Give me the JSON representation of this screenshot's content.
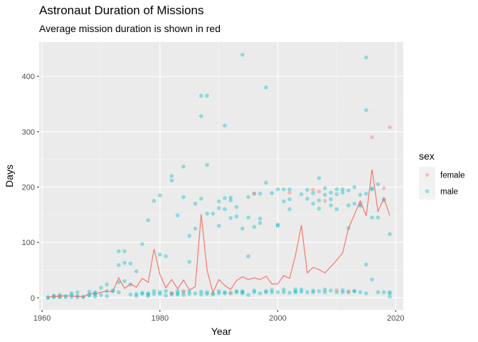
{
  "chart_data": {
    "type": "scatter",
    "title": "Astronaut Duration of Missions",
    "subtitle": "Average mission duration is shown in red",
    "xlabel": "Year",
    "ylabel": "Days",
    "xlim": [
      1959.5,
      2021.3
    ],
    "ylim": [
      -22,
      462
    ],
    "x_ticks": [
      1960,
      1980,
      2000,
      2020
    ],
    "y_ticks": [
      0,
      100,
      200,
      300,
      400
    ],
    "grid": true,
    "legend": {
      "title": "sex",
      "position": "right",
      "entries": [
        {
          "label": "female",
          "color": "#F8766D"
        },
        {
          "label": "male",
          "color": "#00BFC4"
        }
      ]
    },
    "avg_line_color": "#F8766D",
    "avg_line": {
      "x": [
        1961,
        1962,
        1963,
        1964,
        1965,
        1966,
        1967,
        1968,
        1969,
        1970,
        1971,
        1972,
        1973,
        1974,
        1975,
        1976,
        1977,
        1978,
        1979,
        1980,
        1981,
        1982,
        1983,
        1984,
        1985,
        1986,
        1987,
        1988,
        1989,
        1990,
        1991,
        1992,
        1993,
        1994,
        1995,
        1996,
        1997,
        1998,
        1999,
        2000,
        2001,
        2002,
        2003,
        2004,
        2005,
        2006,
        2007,
        2008,
        2009,
        2010,
        2011,
        2012,
        2013,
        2014,
        2015,
        2016,
        2017,
        2018,
        2019
      ],
      "y": [
        1,
        2,
        3,
        4,
        3,
        3,
        1,
        8,
        7,
        10,
        12,
        11,
        36,
        17,
        25,
        19,
        35,
        28,
        88,
        42,
        18,
        33,
        16,
        32,
        14,
        20,
        151,
        50,
        9,
        33,
        22,
        15,
        31,
        38,
        33,
        36,
        33,
        39,
        25,
        25,
        40,
        35,
        77,
        131,
        45,
        55,
        51,
        45,
        56,
        68,
        81,
        126,
        150,
        175,
        148,
        232,
        156,
        180,
        149
      ]
    },
    "series": [
      {
        "name": "male",
        "color": "#00BFC4",
        "x": [
          1961,
          1961,
          1962,
          1962,
          1962,
          1963,
          1963,
          1963,
          1964,
          1964,
          1965,
          1965,
          1965,
          1966,
          1966,
          1966,
          1967,
          1967,
          1968,
          1968,
          1968,
          1969,
          1969,
          1969,
          1969,
          1970,
          1970,
          1971,
          1971,
          1971,
          1972,
          1972,
          1973,
          1973,
          1973,
          1973,
          1974,
          1974,
          1974,
          1975,
          1975,
          1975,
          1976,
          1976,
          1976,
          1977,
          1977,
          1977,
          1978,
          1978,
          1978,
          1978,
          1979,
          1979,
          1979,
          1980,
          1980,
          1980,
          1980,
          1981,
          1981,
          1981,
          1982,
          1982,
          1982,
          1982,
          1983,
          1983,
          1983,
          1983,
          1984,
          1984,
          1984,
          1984,
          1985,
          1985,
          1985,
          1985,
          1986,
          1986,
          1986,
          1987,
          1987,
          1987,
          1987,
          1987,
          1988,
          1988,
          1988,
          1988,
          1988,
          1989,
          1989,
          1989,
          1990,
          1990,
          1990,
          1990,
          1990,
          1991,
          1991,
          1991,
          1991,
          1991,
          1992,
          1992,
          1992,
          1992,
          1993,
          1993,
          1993,
          1993,
          1994,
          1994,
          1994,
          1994,
          1994,
          1995,
          1995,
          1995,
          1995,
          1996,
          1996,
          1996,
          1996,
          1997,
          1997,
          1997,
          1997,
          1998,
          1998,
          1998,
          1998,
          1999,
          1999,
          1999,
          2000,
          2000,
          2000,
          2000,
          2001,
          2001,
          2001,
          2001,
          2002,
          2002,
          2002,
          2002,
          2003,
          2003,
          2003,
          2004,
          2004,
          2004,
          2005,
          2005,
          2005,
          2006,
          2006,
          2006,
          2006,
          2007,
          2007,
          2007,
          2007,
          2008,
          2008,
          2008,
          2008,
          2009,
          2009,
          2009,
          2009,
          2010,
          2010,
          2010,
          2010,
          2011,
          2011,
          2011,
          2011,
          2012,
          2012,
          2012,
          2012,
          2013,
          2013,
          2013,
          2013,
          2014,
          2014,
          2014,
          2014,
          2015,
          2015,
          2015,
          2015,
          2015,
          2016,
          2016,
          2016,
          2016,
          2017,
          2017,
          2017,
          2018,
          2018,
          2018,
          2019,
          2019,
          2019,
          2019
        ],
        "y": [
          1,
          0,
          2,
          4,
          1,
          5,
          2,
          1,
          1,
          3,
          8,
          5,
          1,
          3,
          1,
          10,
          2,
          1,
          11,
          5,
          4,
          8,
          10,
          2,
          6,
          18,
          5,
          24,
          12,
          3,
          12,
          13,
          84,
          59,
          28,
          10,
          63,
          84,
          30,
          6,
          24,
          62,
          7,
          48,
          3,
          97,
          9,
          7,
          140,
          8,
          6,
          3,
          175,
          12,
          7,
          185,
          78,
          7,
          10,
          4,
          12,
          75,
          220,
          212,
          8,
          6,
          12,
          149,
          6,
          8,
          237,
          182,
          10,
          5,
          12,
          112,
          65,
          7,
          8,
          170,
          125,
          365,
          328,
          179,
          6,
          11,
          365,
          152,
          240,
          10,
          7,
          152,
          8,
          6,
          130,
          8,
          174,
          162,
          12,
          160,
          180,
          311,
          10,
          8,
          176,
          181,
          144,
          9,
          164,
          147,
          10,
          12,
          439,
          125,
          10,
          12,
          8,
          75,
          145,
          5,
          182,
          10,
          13,
          188,
          128,
          8,
          143,
          135,
          188,
          380,
          12,
          208,
          10,
          10,
          189,
          14,
          10,
          132,
          196,
          130,
          10,
          15,
          174,
          196,
          178,
          160,
          9,
          196,
          11,
          15,
          10,
          187,
          11,
          15,
          195,
          10,
          179,
          170,
          189,
          10,
          13,
          216,
          176,
          161,
          12,
          186,
          198,
          10,
          15,
          13,
          167,
          178,
          190,
          10,
          160,
          187,
          196,
          14,
          190,
          196,
          10,
          126,
          194,
          167,
          10,
          12,
          200,
          12,
          170,
          186,
          166,
          10,
          168,
          60,
          339,
          188,
          8,
          434,
          145,
          33,
          196,
          198,
          145,
          10,
          205,
          10,
          176,
          178,
          115,
          8,
          10,
          2
        ]
      },
      {
        "name": "female",
        "color": "#F8766D",
        "x": [
          1963,
          1982,
          1984,
          1992,
          1996,
          2002,
          2006,
          2007,
          2008,
          2010,
          2012,
          2014,
          2016,
          2018,
          2019
        ],
        "y": [
          3,
          8,
          12,
          8,
          188,
          190,
          195,
          192,
          175,
          14,
          12,
          171,
          290,
          198,
          308
        ]
      }
    ]
  }
}
